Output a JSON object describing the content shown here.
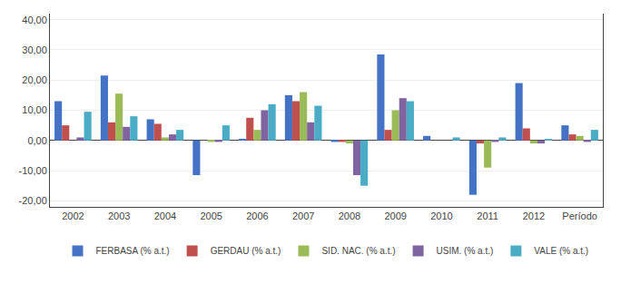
{
  "chart_data": {
    "type": "bar",
    "categories": [
      "2002",
      "2003",
      "2004",
      "2005",
      "2006",
      "2007",
      "2008",
      "2009",
      "2010",
      "2011",
      "2012",
      "Período"
    ],
    "series": [
      {
        "name": "FERBASA (% a.t.)",
        "color": "#4472C4",
        "values": [
          13.0,
          21.5,
          7.0,
          -11.5,
          0.5,
          15.0,
          -0.5,
          28.5,
          1.5,
          -18.0,
          19.0,
          5.0
        ]
      },
      {
        "name": "GERDAU (% a.t.)",
        "color": "#C0504D",
        "values": [
          5.0,
          6.0,
          5.5,
          0.0,
          7.5,
          13.0,
          -0.5,
          3.5,
          0.0,
          -1.0,
          4.0,
          2.0
        ]
      },
      {
        "name": "SID. NAC. (% a.t.)",
        "color": "#9BBB59",
        "values": [
          0.0,
          15.5,
          1.0,
          -0.5,
          3.5,
          16.0,
          -1.0,
          10.0,
          0.0,
          -9.0,
          -1.0,
          1.5
        ]
      },
      {
        "name": "USIM. (% a.t.)",
        "color": "#8064A2",
        "values": [
          1.0,
          4.5,
          2.0,
          -0.5,
          10.0,
          6.0,
          -11.5,
          14.0,
          0.0,
          -0.5,
          -1.0,
          -0.5
        ]
      },
      {
        "name": "VALE (% a.t.)",
        "color": "#4BACC6",
        "values": [
          9.5,
          8.0,
          3.5,
          5.0,
          12.0,
          11.5,
          -15.0,
          13.0,
          1.0,
          1.0,
          0.5,
          3.5
        ]
      }
    ],
    "ylim": [
      -22,
      42
    ],
    "yticks": [
      {
        "value": -20,
        "label": "-20,00"
      },
      {
        "value": -10,
        "label": "-10,00"
      },
      {
        "value": 0,
        "label": "0,00"
      },
      {
        "value": 10,
        "label": "10,00"
      },
      {
        "value": 20,
        "label": "20,00"
      },
      {
        "value": 30,
        "label": "30,00"
      },
      {
        "value": 40,
        "label": "40,00"
      }
    ],
    "grid": true,
    "legend": "bottom"
  }
}
